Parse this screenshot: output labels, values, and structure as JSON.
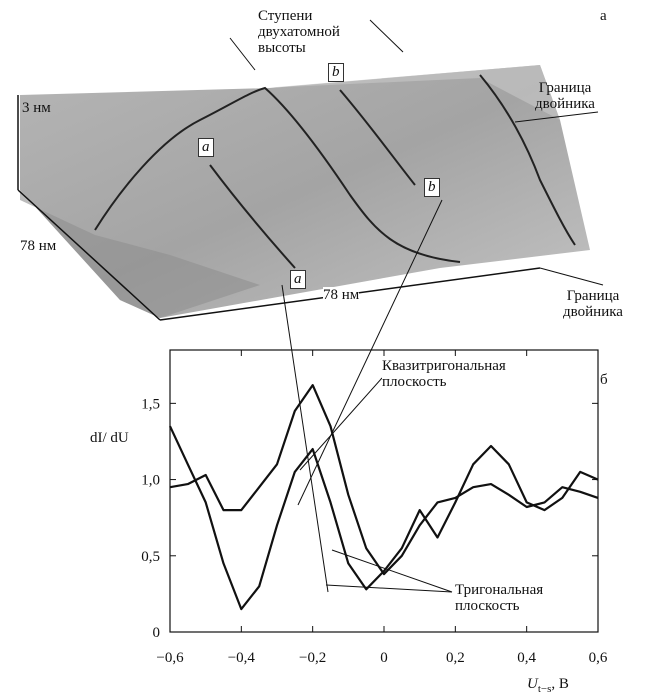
{
  "image_panel": {
    "panel_label": "а",
    "steps_label": "Ступени двухатомной высоты",
    "height_label": "3 нм",
    "depth_label": "78 нм",
    "width_label": "78 нм",
    "boundary_top": "Граница двойника",
    "boundary_bottom": "Граница двойника",
    "marker_a": "a",
    "marker_b": "b"
  },
  "chart_data": {
    "type": "line",
    "panel_label": "б",
    "ylabel": "dI/ dU",
    "xlabel": "U",
    "xlabel_sub": "t−s",
    "xlabel_unit": ", В",
    "x": [
      -0.6,
      -0.55,
      -0.5,
      -0.45,
      -0.4,
      -0.35,
      -0.3,
      -0.25,
      -0.2,
      -0.15,
      -0.1,
      -0.05,
      0,
      0.05,
      0.1,
      0.15,
      0.2,
      0.25,
      0.3,
      0.35,
      0.4,
      0.45,
      0.5,
      0.55,
      0.6
    ],
    "series": [
      {
        "name": "Квазитригональная плоскость",
        "color": "#111111",
        "values": [
          0.95,
          0.97,
          1.03,
          0.8,
          0.8,
          0.95,
          1.1,
          1.45,
          1.62,
          1.35,
          0.9,
          0.55,
          0.38,
          0.5,
          0.7,
          0.85,
          0.88,
          0.95,
          0.97,
          0.9,
          0.82,
          0.85,
          0.95,
          0.92,
          0.88
        ]
      },
      {
        "name": "Тригональная плоскость",
        "color": "#111111",
        "values": [
          1.35,
          1.1,
          0.85,
          0.45,
          0.15,
          0.3,
          0.7,
          1.05,
          1.2,
          0.85,
          0.45,
          0.28,
          0.4,
          0.55,
          0.8,
          0.62,
          0.85,
          1.1,
          1.22,
          1.1,
          0.85,
          0.8,
          0.88,
          1.05,
          1.0
        ]
      }
    ],
    "xlim": [
      -0.6,
      0.6
    ],
    "ylim": [
      0,
      1.85
    ],
    "xticks": [
      {
        "value": -0.6,
        "label": "−0,6"
      },
      {
        "value": -0.4,
        "label": "−0,4"
      },
      {
        "value": -0.2,
        "label": "−0,2"
      },
      0,
      {
        "value": 0.2,
        "label": "0,2"
      },
      {
        "value": 0.4,
        "label": "0,4"
      },
      {
        "value": 0.6,
        "label": "0,6"
      }
    ],
    "yticks": [
      0,
      {
        "value": 0.5,
        "label": "0,5"
      },
      {
        "value": 1.0,
        "label": "1,0"
      },
      {
        "value": 1.5,
        "label": "1,5"
      }
    ]
  }
}
